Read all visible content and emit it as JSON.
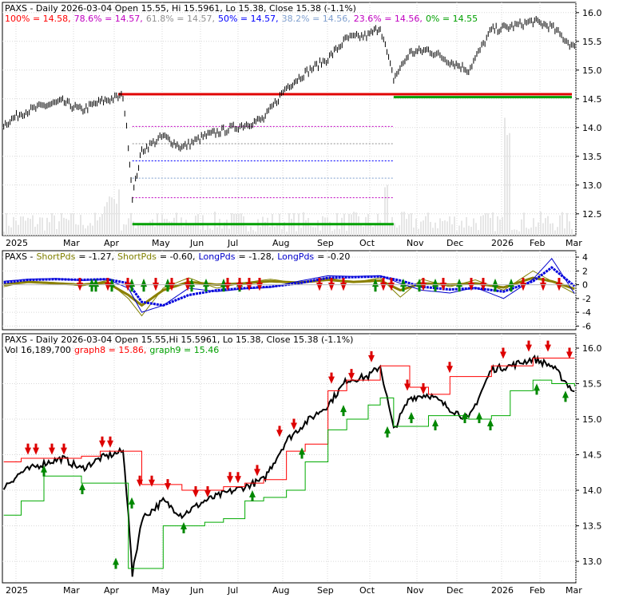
{
  "panels": [
    {
      "id": "fib",
      "header": [
        {
          "text": "PAXS - Daily 2026-03-04 Open 15.55, Hi 15.5961, Lo 15.38, Close 15.38 (-1.1%)",
          "color": "#000000"
        }
      ],
      "header2": [
        {
          "text": "100% = 14.58,",
          "color": "#ff0000"
        },
        {
          "text": "78.6% = 14.57,",
          "color": "#c000c0"
        },
        {
          "text": "61.8% = 14.57,",
          "color": "#909090"
        },
        {
          "text": "50% = 14.57,",
          "color": "#0000ff"
        },
        {
          "text": "38.2% = 14.56,",
          "color": "#7f9fcf"
        },
        {
          "text": "23.6% = 14.56,",
          "color": "#c000c0"
        },
        {
          "text": "0% = 14.55",
          "color": "#00a000"
        }
      ],
      "y_ticks": [
        "16.0",
        "15.5",
        "15.0",
        "14.5",
        "14.0",
        "13.5",
        "13.0",
        "12.5"
      ],
      "ylim": [
        12.15,
        16.15
      ]
    },
    {
      "id": "osc",
      "header": [
        {
          "text": "PAXS -",
          "color": "#000000"
        },
        {
          "text": "ShortPds",
          "color": "#808000"
        },
        {
          "text": "= -1.27,",
          "color": "#000000"
        },
        {
          "text": "ShortPds",
          "color": "#808000"
        },
        {
          "text": "= -0.60,",
          "color": "#000000"
        },
        {
          "text": "LongPds",
          "color": "#0000cc"
        },
        {
          "text": "= -1.28,",
          "color": "#000000"
        },
        {
          "text": "LongPds",
          "color": "#0000cc"
        },
        {
          "text": "= -0.20",
          "color": "#000000"
        }
      ],
      "y_ticks": [
        "4",
        "2",
        "0",
        "-2",
        "-4",
        "-6"
      ],
      "ylim": [
        -6.3,
        4.7
      ]
    },
    {
      "id": "steps",
      "header": [
        {
          "text": "PAXS - Daily 2026-03-04 Open 15.55,Hi 15.5961, Lo 15.38, Close 15.38 (-1.1%)",
          "color": "#000000"
        }
      ],
      "header2": [
        {
          "text": "Vol 16,189,700",
          "color": "#000000"
        },
        {
          "text": "graph8 = 15.86,",
          "color": "#ff0000"
        },
        {
          "text": "graph9 = 15.46",
          "color": "#00a000"
        }
      ],
      "y_ticks": [
        "16.0",
        "15.5",
        "15.0",
        "14.5",
        "14.0",
        "13.5",
        "13.0"
      ],
      "ylim": [
        12.72,
        16.18
      ]
    }
  ],
  "x_labels": [
    "2025",
    "Mar",
    "Apr",
    "May",
    "Jun",
    "Jul",
    "Aug",
    "Sep",
    "Oct",
    "Nov",
    "Dec",
    "2026",
    "Feb",
    "Mar"
  ],
  "chart_data": [
    {
      "type": "line",
      "x": [
        "2025-01-02",
        "2025-01-15",
        "2025-02-01",
        "2025-02-15",
        "2025-03-01",
        "2025-03-15",
        "2025-04-01",
        "2025-04-05",
        "2025-04-08",
        "2025-04-15",
        "2025-05-01",
        "2025-05-15",
        "2025-06-01",
        "2025-06-15",
        "2025-07-01",
        "2025-07-15",
        "2025-08-01",
        "2025-08-15",
        "2025-09-01",
        "2025-09-15",
        "2025-10-01",
        "2025-10-10",
        "2025-10-20",
        "2025-11-01",
        "2025-11-15",
        "2025-12-01",
        "2025-12-15",
        "2026-01-01",
        "2026-01-15",
        "2026-02-01",
        "2026-02-15",
        "2026-03-04"
      ],
      "series": [
        {
          "values": [
            14.05,
            14.25,
            14.38,
            14.45,
            14.3,
            14.45,
            14.55,
            13.7,
            12.8,
            13.6,
            13.85,
            13.65,
            13.85,
            13.95,
            14.05,
            14.15,
            14.7,
            14.95,
            15.2,
            15.55,
            15.6,
            15.75,
            14.85,
            15.3,
            15.35,
            15.15,
            15.0,
            15.7,
            15.75,
            15.85,
            15.75,
            15.38
          ]
        }
      ],
      "fib_levels": {
        "100%": 14.58,
        "78.6%": 14.57,
        "61.8%": 14.57,
        "50%": 14.57,
        "38.2%": 14.56,
        "23.6%": 14.56,
        "0%": 14.55
      },
      "ylim": [
        12.15,
        16.15
      ]
    },
    {
      "type": "line",
      "x": [
        "2025-01-02",
        "2025-01-20",
        "2025-02-10",
        "2025-03-01",
        "2025-03-20",
        "2025-04-05",
        "2025-04-15",
        "2025-05-01",
        "2025-05-20",
        "2025-06-10",
        "2025-07-01",
        "2025-07-20",
        "2025-08-10",
        "2025-09-01",
        "2025-09-20",
        "2025-10-10",
        "2025-10-25",
        "2025-11-10",
        "2025-12-01",
        "2025-12-20",
        "2026-01-10",
        "2026-02-01",
        "2026-02-15",
        "2026-03-04"
      ],
      "series": [
        {
          "name": "ShortPds",
          "values": [
            -0.3,
            0.5,
            0.3,
            -0.2,
            0.6,
            -2.0,
            -4.5,
            -0.5,
            1.0,
            -0.5,
            0.3,
            0.8,
            0.2,
            1.0,
            0.3,
            1.0,
            -1.8,
            0.8,
            -0.3,
            0.7,
            -0.8,
            2.0,
            0.5,
            -1.27
          ]
        },
        {
          "name": "ShortPds",
          "values": [
            0.0,
            0.4,
            0.2,
            0.0,
            0.3,
            -1.5,
            -3.0,
            -0.8,
            0.4,
            0.0,
            0.2,
            0.5,
            0.3,
            0.7,
            0.4,
            0.6,
            -0.8,
            0.2,
            0.0,
            0.2,
            -0.4,
            1.0,
            0.5,
            -0.6
          ]
        },
        {
          "name": "LongPds",
          "values": [
            0.5,
            0.8,
            0.9,
            0.6,
            0.8,
            -0.5,
            -4.0,
            -3.0,
            -0.5,
            -1.0,
            -0.6,
            -0.4,
            0.5,
            1.3,
            1.2,
            1.3,
            0.2,
            -0.8,
            -1.2,
            -0.4,
            -2.0,
            0.8,
            3.8,
            -1.28
          ]
        },
        {
          "name": "LongPds",
          "values": [
            0.3,
            0.7,
            0.8,
            0.7,
            0.8,
            0.2,
            -2.5,
            -3.0,
            -1.5,
            -0.8,
            -0.5,
            -0.3,
            0.2,
            1.0,
            1.1,
            1.2,
            0.6,
            -0.3,
            -0.7,
            -0.5,
            -1.0,
            0.5,
            2.5,
            -0.2
          ]
        }
      ],
      "ylim": [
        -6.3,
        4.7
      ]
    },
    {
      "type": "line",
      "x": [
        "2025-01-02",
        "2025-01-15",
        "2025-02-01",
        "2025-02-15",
        "2025-03-01",
        "2025-03-15",
        "2025-04-01",
        "2025-04-05",
        "2025-04-08",
        "2025-04-15",
        "2025-05-01",
        "2025-05-15",
        "2025-06-01",
        "2025-06-15",
        "2025-07-01",
        "2025-07-15",
        "2025-08-01",
        "2025-08-15",
        "2025-09-01",
        "2025-09-15",
        "2025-10-01",
        "2025-10-10",
        "2025-10-20",
        "2025-11-01",
        "2025-11-15",
        "2025-12-01",
        "2025-12-15",
        "2026-01-01",
        "2026-01-15",
        "2026-02-01",
        "2026-02-15",
        "2026-03-04"
      ],
      "series": [
        {
          "name": "Close",
          "values": [
            14.05,
            14.25,
            14.38,
            14.45,
            14.3,
            14.45,
            14.55,
            13.7,
            12.8,
            13.6,
            13.85,
            13.65,
            13.85,
            13.95,
            14.05,
            14.15,
            14.7,
            14.95,
            15.2,
            15.55,
            15.6,
            15.75,
            14.85,
            15.3,
            15.35,
            15.15,
            15.0,
            15.7,
            15.75,
            15.85,
            15.75,
            15.38
          ]
        },
        {
          "name": "graph8",
          "values": [
            14.4,
            14.45,
            14.45,
            14.45,
            14.48,
            14.55,
            14.55,
            14.55,
            14.55,
            14.08,
            14.08,
            14.0,
            14.0,
            14.05,
            14.1,
            14.15,
            14.55,
            14.65,
            15.4,
            15.55,
            15.55,
            15.75,
            15.75,
            15.45,
            15.35,
            15.6,
            15.6,
            15.75,
            15.75,
            15.86,
            15.86,
            15.86
          ]
        },
        {
          "name": "graph9",
          "values": [
            13.65,
            13.85,
            14.2,
            14.2,
            14.1,
            14.1,
            14.1,
            12.9,
            12.9,
            12.9,
            13.5,
            13.5,
            13.55,
            13.6,
            13.85,
            13.9,
            14.0,
            14.4,
            14.85,
            15.0,
            15.2,
            15.3,
            14.9,
            14.9,
            15.05,
            15.05,
            15.0,
            15.05,
            15.4,
            15.55,
            15.5,
            15.46
          ]
        }
      ],
      "ylim": [
        12.72,
        16.18
      ]
    }
  ]
}
